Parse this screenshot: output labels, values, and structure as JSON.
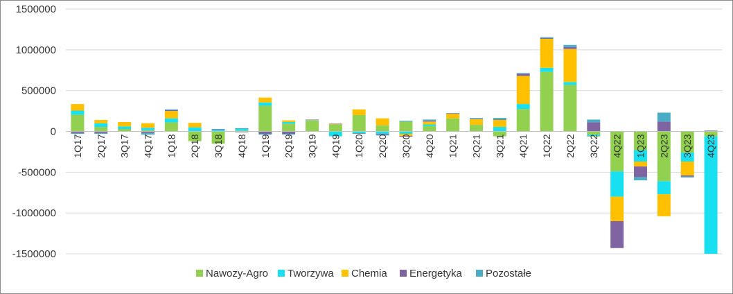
{
  "chart_data": {
    "type": "bar",
    "stacked": true,
    "title": "",
    "xlabel": "",
    "ylabel": "",
    "ylim": [
      -1500000,
      1500000
    ],
    "yticks": [
      -1500000,
      -1000000,
      -500000,
      0,
      500000,
      1000000,
      1500000
    ],
    "ytick_labels": [
      "-1500000",
      "-1000000",
      "-500000",
      "0",
      "500000",
      "1000000",
      "1500000"
    ],
    "grid": true,
    "legend_position": "bottom",
    "categories": [
      "1Q17",
      "2Q17",
      "3Q17",
      "4Q17",
      "1Q18",
      "2Q18",
      "3Q18",
      "4Q18",
      "1Q19",
      "2Q19",
      "3Q19",
      "4Q19",
      "1Q20",
      "2Q20",
      "3Q20",
      "4Q20",
      "1Q21",
      "2Q21",
      "3Q21",
      "4Q21",
      "1Q22",
      "2Q22",
      "3Q22",
      "4Q22",
      "1Q23",
      "2Q23",
      "3Q23",
      "4Q23"
    ],
    "series": [
      {
        "name": "Nawozy-Agro",
        "color": "#92d050",
        "values": [
          205000,
          55000,
          30000,
          15000,
          110000,
          -120000,
          -150000,
          10000,
          315000,
          95000,
          130000,
          85000,
          200000,
          75000,
          120000,
          65000,
          160000,
          80000,
          -60000,
          275000,
          730000,
          570000,
          -40000,
          -490000,
          -230000,
          -610000,
          -260000,
          -60000
        ]
      },
      {
        "name": "Tworzywa",
        "color": "#19e0f0",
        "values": [
          50000,
          45000,
          30000,
          30000,
          50000,
          50000,
          20000,
          20000,
          40000,
          20000,
          5000,
          -60000,
          -25000,
          -30000,
          -30000,
          20000,
          -5000,
          0,
          55000,
          60000,
          50000,
          35000,
          -20000,
          -310000,
          -140000,
          -160000,
          -110000,
          -1440000
        ]
      },
      {
        "name": "Chemia",
        "color": "#ffc000",
        "values": [
          80000,
          40000,
          55000,
          55000,
          90000,
          55000,
          0,
          0,
          60000,
          20000,
          5000,
          5000,
          70000,
          85000,
          -25000,
          35000,
          55000,
          70000,
          85000,
          345000,
          355000,
          405000,
          -5000,
          -300000,
          -60000,
          -270000,
          -170000,
          0
        ]
      },
      {
        "name": "Energetyka",
        "color": "#8064a2",
        "values": [
          -20000,
          -20000,
          0,
          -20000,
          10000,
          0,
          5000,
          -10000,
          -30000,
          -30000,
          5000,
          5000,
          -5000,
          -10000,
          -10000,
          10000,
          5000,
          5000,
          5000,
          25000,
          10000,
          25000,
          110000,
          -330000,
          -130000,
          120000,
          -15000,
          10000
        ]
      },
      {
        "name": "Pozostałe",
        "color": "#4bacc6",
        "values": [
          -10000,
          -10000,
          0,
          -20000,
          10000,
          0,
          5000,
          10000,
          -10000,
          -10000,
          0,
          0,
          0,
          -10000,
          10000,
          15000,
          5000,
          10000,
          20000,
          10000,
          10000,
          25000,
          35000,
          0,
          -40000,
          110000,
          -10000,
          0
        ]
      }
    ]
  }
}
